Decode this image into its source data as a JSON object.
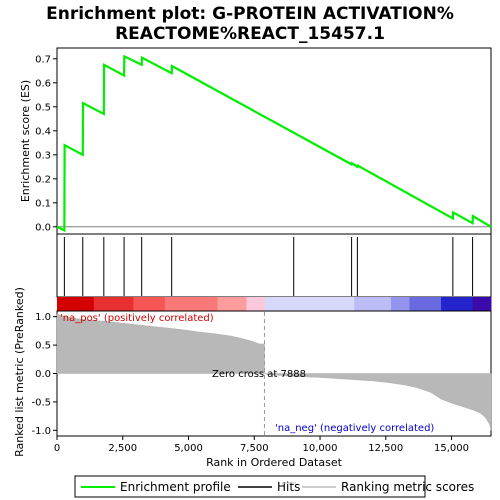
{
  "chart_data": {
    "type": "line",
    "title_line1": "Enrichment plot: G-PROTEIN ACTIVATION%",
    "title_line2": "REACTOME%REACT_15457.1",
    "top_panel": {
      "ylabel": "Enrichment score (ES)",
      "ylim": [
        -0.03,
        0.745
      ],
      "yticks": [
        "0.0",
        "0.1",
        "0.2",
        "0.3",
        "0.4",
        "0.5",
        "0.6",
        "0.7"
      ],
      "ytick_values": [
        0.0,
        0.1,
        0.2,
        0.3,
        0.4,
        0.5,
        0.6,
        0.7
      ],
      "series": [
        {
          "name": "Enrichment profile",
          "color": "#00ee00",
          "x": [
            0,
            280,
            290,
            980,
            990,
            1780,
            1790,
            2550,
            2560,
            3220,
            3230,
            4360,
            4370,
            11200,
            11210,
            11420,
            11430,
            15050,
            15060,
            15800,
            15810,
            16500
          ],
          "y": [
            0.0,
            -0.015,
            0.34,
            0.3,
            0.515,
            0.47,
            0.675,
            0.63,
            0.71,
            0.675,
            0.705,
            0.64,
            0.67,
            0.26,
            0.265,
            0.25,
            0.255,
            0.035,
            0.06,
            0.015,
            0.045,
            0.0
          ]
        }
      ]
    },
    "hits": [
      280,
      980,
      1780,
      2550,
      3220,
      4360,
      9000,
      11200,
      11420,
      15050,
      15800
    ],
    "bottom_panel": {
      "ylabel": "Ranked list metric (PreRanked)",
      "ylim": [
        -1.1,
        1.1
      ],
      "yticks": [
        "1.0",
        "0.5",
        "0.0",
        "-0.5",
        "-1.0"
      ],
      "ytick_values": [
        1.0,
        0.5,
        0.0,
        -0.5,
        -1.0
      ],
      "metric_x": [
        0,
        300,
        700,
        1200,
        1800,
        2400,
        3000,
        3600,
        4200,
        4800,
        5400,
        6000,
        6600,
        7000,
        7400,
        7700,
        7888,
        8000,
        9000,
        10000,
        11000,
        12000,
        12600,
        13200,
        13700,
        14200,
        14600,
        15000,
        15400,
        15800,
        16100,
        16300,
        16450,
        16500
      ],
      "metric_y": [
        1.05,
        1.0,
        0.97,
        0.94,
        0.92,
        0.89,
        0.86,
        0.83,
        0.8,
        0.77,
        0.73,
        0.7,
        0.66,
        0.62,
        0.57,
        0.52,
        0.0,
        -0.02,
        -0.05,
        -0.07,
        -0.1,
        -0.13,
        -0.16,
        -0.2,
        -0.25,
        -0.33,
        -0.45,
        -0.52,
        -0.58,
        -0.64,
        -0.7,
        -0.78,
        -0.9,
        -1.0
      ],
      "zero_cross_label": "Zero cross at 7888",
      "zero_cross": 7888,
      "pos_label": "'na_pos' (positively correlated)",
      "neg_label": "'na_neg' (negatively correlated)"
    },
    "xlabel": "Rank in Ordered Dataset",
    "xlim": [
      0,
      16500
    ],
    "xticks": [
      "0",
      "2,500",
      "5,000",
      "7,500",
      "10,000",
      "12,500",
      "15,000"
    ],
    "xtick_values": [
      0,
      2500,
      5000,
      7500,
      10000,
      12500,
      15000
    ],
    "colorbar": [
      {
        "from": 0,
        "to": 1400,
        "color": "#d40000"
      },
      {
        "from": 1400,
        "to": 2900,
        "color": "#e83030"
      },
      {
        "from": 2900,
        "to": 4100,
        "color": "#f85555"
      },
      {
        "from": 4100,
        "to": 6100,
        "color": "#fb7878"
      },
      {
        "from": 6100,
        "to": 7200,
        "color": "#fc9c9c"
      },
      {
        "from": 7200,
        "to": 7900,
        "color": "#fdc8dc"
      },
      {
        "from": 7900,
        "to": 11300,
        "color": "#d8d8fb"
      },
      {
        "from": 11300,
        "to": 12700,
        "color": "#bcbcf6"
      },
      {
        "from": 12700,
        "to": 13400,
        "color": "#9494ee"
      },
      {
        "from": 13400,
        "to": 14600,
        "color": "#6a6ae0"
      },
      {
        "from": 14600,
        "to": 15800,
        "color": "#2424cc"
      },
      {
        "from": 15800,
        "to": 16500,
        "color": "#3a0aaa"
      }
    ],
    "legend": [
      {
        "label": "Enrichment profile",
        "color": "#00ee00",
        "kind": "line"
      },
      {
        "label": "Hits",
        "color": "#000000",
        "kind": "line"
      },
      {
        "label": "Ranking metric scores",
        "color": "#bbbbbb",
        "kind": "line"
      }
    ]
  }
}
